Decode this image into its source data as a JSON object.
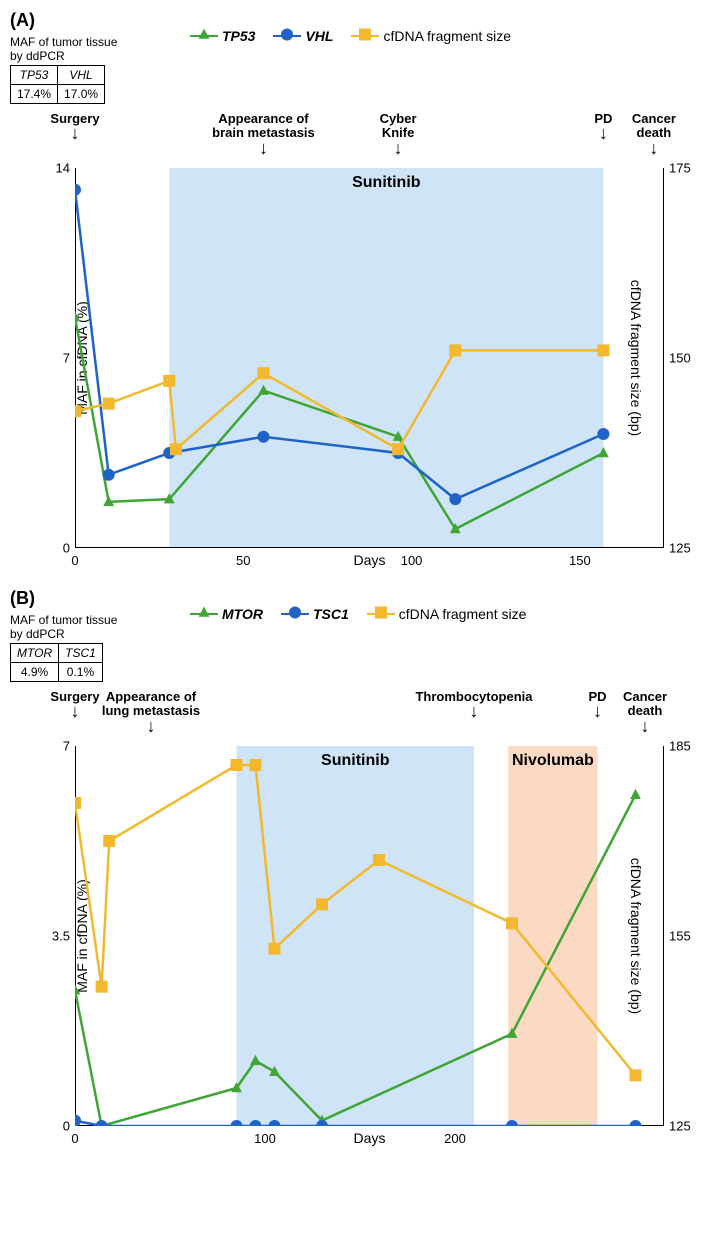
{
  "panelA": {
    "label": "(A)",
    "maf_label": "MAF of tumor tissue\nby ddPCR",
    "maf_table": {
      "genes": [
        "TP53",
        "VHL"
      ],
      "values": [
        "17.4%",
        "17.0%"
      ]
    },
    "legend": [
      {
        "label": "TP53",
        "color": "#3fa535",
        "marker": "triangle",
        "italic": true
      },
      {
        "label": "VHL",
        "color": "#1f63c7",
        "marker": "circle",
        "italic": true
      },
      {
        "label": "cfDNA fragment size",
        "color": "#f2b92e",
        "marker": "square",
        "italic": false
      }
    ],
    "events": [
      {
        "label": "Surgery",
        "x": 0
      },
      {
        "label": "Appearance of\nbrain metastasis",
        "x": 56
      },
      {
        "label": "Cyber\nKnife",
        "x": 96
      },
      {
        "label": "PD",
        "x": 157
      },
      {
        "label": "Cancer\ndeath",
        "x": 172
      }
    ],
    "treatment": {
      "label": "Sunitinib",
      "start": 28,
      "end": 157,
      "color": "#cfe4f7"
    },
    "x": {
      "min": 0,
      "max": 175,
      "ticks": [
        0,
        50,
        100,
        150
      ],
      "label": "Days"
    },
    "yL": {
      "min": 0,
      "max": 14,
      "ticks": [
        0,
        7,
        14
      ],
      "label": "MAF in cfDNA (%)"
    },
    "yR": {
      "min": 125,
      "max": 175,
      "ticks": [
        125,
        150,
        175
      ],
      "label": "cfDNA fragment size (bp)"
    },
    "series": {
      "TP53": {
        "axis": "L",
        "color": "#3fa535",
        "marker": "triangle",
        "pts": [
          [
            0,
            8.5
          ],
          [
            10,
            1.7
          ],
          [
            28,
            1.8
          ],
          [
            56,
            5.8
          ],
          [
            96,
            4.1
          ],
          [
            113,
            0.7
          ],
          [
            157,
            3.5
          ]
        ]
      },
      "VHL": {
        "axis": "L",
        "color": "#1f63c7",
        "marker": "circle",
        "pts": [
          [
            0,
            13.2
          ],
          [
            10,
            2.7
          ],
          [
            28,
            3.5
          ],
          [
            56,
            4.1
          ],
          [
            96,
            3.5
          ],
          [
            113,
            1.8
          ],
          [
            157,
            4.2
          ]
        ]
      },
      "frag": {
        "axis": "R",
        "color": "#f2b92e",
        "marker": "square",
        "pts": [
          [
            0,
            143
          ],
          [
            10,
            144
          ],
          [
            28,
            147
          ],
          [
            30,
            138
          ],
          [
            56,
            148
          ],
          [
            96,
            138
          ],
          [
            113,
            151
          ],
          [
            157,
            151
          ]
        ]
      }
    }
  },
  "panelB": {
    "label": "(B)",
    "maf_label": "MAF of tumor tissue\nby ddPCR",
    "maf_table": {
      "genes": [
        "MTOR",
        "TSC1"
      ],
      "values": [
        "4.9%",
        "0.1%"
      ]
    },
    "legend": [
      {
        "label": "MTOR",
        "color": "#3fa535",
        "marker": "triangle",
        "italic": true
      },
      {
        "label": "TSC1",
        "color": "#1f63c7",
        "marker": "circle",
        "italic": true
      },
      {
        "label": "cfDNA fragment size",
        "color": "#f2b92e",
        "marker": "square",
        "italic": false
      }
    ],
    "events": [
      {
        "label": "Surgery",
        "x": 0
      },
      {
        "label": "Appearance of\nlung metastasis",
        "x": 40
      },
      {
        "label": "Thrombocytopenia",
        "x": 210
      },
      {
        "label": "PD",
        "x": 275
      },
      {
        "label": "Cancer\ndeath",
        "x": 300
      }
    ],
    "treatments": [
      {
        "label": "Sunitinib",
        "start": 85,
        "end": 210,
        "color": "#cfe4f7"
      },
      {
        "label": "Nivolumab",
        "start": 228,
        "end": 275,
        "color": "#fbd9c2"
      }
    ],
    "x": {
      "min": 0,
      "max": 310,
      "ticks": [
        0,
        100,
        200
      ],
      "label": "Days"
    },
    "yL": {
      "min": 0,
      "max": 7.0,
      "ticks": [
        0,
        3.5,
        7.0
      ],
      "label": "MAF in cfDNA (%)"
    },
    "yR": {
      "min": 125,
      "max": 185,
      "ticks": [
        125,
        155,
        185
      ],
      "label": "cfDNA fragment size (bp)"
    },
    "series": {
      "MTOR": {
        "axis": "L",
        "color": "#3fa535",
        "marker": "triangle",
        "pts": [
          [
            0,
            2.5
          ],
          [
            14,
            0
          ],
          [
            85,
            0.7
          ],
          [
            95,
            1.2
          ],
          [
            105,
            1.0
          ],
          [
            130,
            0.1
          ],
          [
            230,
            1.7
          ],
          [
            295,
            6.1
          ]
        ]
      },
      "TSC1": {
        "axis": "L",
        "color": "#1f63c7",
        "marker": "circle",
        "pts": [
          [
            0,
            0.1
          ],
          [
            14,
            0
          ],
          [
            85,
            0
          ],
          [
            95,
            0
          ],
          [
            105,
            0
          ],
          [
            130,
            0
          ],
          [
            230,
            0
          ],
          [
            295,
            0
          ]
        ]
      },
      "frag": {
        "axis": "R",
        "color": "#f2b92e",
        "marker": "square",
        "pts": [
          [
            0,
            176
          ],
          [
            14,
            147
          ],
          [
            18,
            170
          ],
          [
            85,
            182
          ],
          [
            95,
            182
          ],
          [
            105,
            153
          ],
          [
            130,
            160
          ],
          [
            160,
            167
          ],
          [
            230,
            157
          ],
          [
            295,
            133
          ]
        ]
      }
    }
  },
  "colors": {
    "axis": "#000000",
    "bg": "#ffffff"
  },
  "line_width": 2.5,
  "marker_size": 6
}
